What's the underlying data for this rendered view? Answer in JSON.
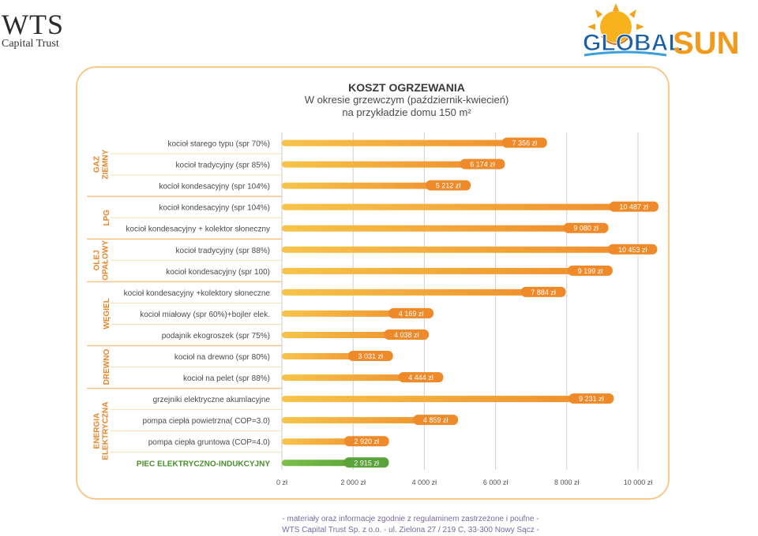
{
  "header": {
    "brand_name": "WTS",
    "brand_sub": "Capital Trust",
    "logo_text_1": "GLOBAL",
    "logo_text_2": "SUN"
  },
  "colors": {
    "bar_orange_start": "#f7c44a",
    "bar_orange_end": "#ef8a2a",
    "bar_green": "#5aa23a",
    "label_green": "#4a8f2c",
    "frame": "#f5c98a",
    "group_label": "#e8862c",
    "row_divider": "#f3c58a"
  },
  "chart_data": {
    "type": "bar",
    "orientation": "horizontal",
    "title": "KOSZT OGRZEWANIA",
    "subtitle_1": "W okresie grzewczym (październik-kwiecień)",
    "subtitle_2": "na przykładzie domu 150 m²",
    "xlim": [
      0,
      10000
    ],
    "ticks": [
      0,
      2000,
      4000,
      6000,
      8000,
      10000
    ],
    "tick_labels": [
      "0 zł",
      "2 000 zł",
      "4 000 zł",
      "6 000 zł",
      "8 000 zł",
      "10 000 zł"
    ],
    "grid": true,
    "groups": [
      {
        "name": "GAZ ZIEMNY",
        "rows": [
          {
            "label": "kocioł starego typu (spr 70%)",
            "value": 7356,
            "value_label": "7 356 zł"
          },
          {
            "label": "kocioł tradycyjny (spr 85%)",
            "value": 6174,
            "value_label": "6 174 zł"
          },
          {
            "label": "kocioł kondesacyjny (spr 104%)",
            "value": 5212,
            "value_label": "5 212 zł"
          }
        ]
      },
      {
        "name": "LPG",
        "rows": [
          {
            "label": "kocioł kondesacyjny (spr 104%)",
            "value": 10487,
            "value_label": "10 487 zł"
          },
          {
            "label": "kocioł kondesacyjny + kolektor słoneczny",
            "value": 9080,
            "value_label": "9 080 zł"
          }
        ]
      },
      {
        "name": "OLEJ OPAŁOWY",
        "rows": [
          {
            "label": "kocioł tradycyjny (spr 88%)",
            "value": 10453,
            "value_label": "10 453 zł"
          },
          {
            "label": "kocioł kondesacyjny (spr 100)",
            "value": 9199,
            "value_label": "9 199 zł"
          }
        ]
      },
      {
        "name": "WĘGIEL",
        "rows": [
          {
            "label": "kocioł kondesacyjny +kolektory słoneczne",
            "value": 7884,
            "value_label": "7 884 zł"
          },
          {
            "label": "kocioł miałowy (spr 60%)+bojler elek.",
            "value": 4169,
            "value_label": "4 169 zł"
          },
          {
            "label": "podajnik ekogroszek (spr 75%)",
            "value": 4038,
            "value_label": "4 038 zł"
          }
        ]
      },
      {
        "name": "DREWNO",
        "rows": [
          {
            "label": "kocioł na drewno (spr 80%)",
            "value": 3031,
            "value_label": "3 031 zł"
          },
          {
            "label": "kocioł na pelet (spr 88%)",
            "value": 4444,
            "value_label": "4 444 zł"
          }
        ]
      },
      {
        "name": "ENERGIA ELEKTRYCZNA",
        "rows": [
          {
            "label": "grzejniki elektryczne akumlacyjne",
            "value": 9231,
            "value_label": "9 231 zł"
          },
          {
            "label": "pompa ciepła powietrzna( COP=3.0)",
            "value": 4859,
            "value_label": "4 859 zł"
          },
          {
            "label": "pompa ciepła gruntowa (COP=4.0)",
            "value": 2920,
            "value_label": "2 920 zł"
          },
          {
            "label": "PIEC ELEKTRYCZNO-INDUKCYJNY",
            "value": 2915,
            "value_label": "2 915 zł",
            "highlight": true
          }
        ]
      }
    ]
  },
  "footer": {
    "line1": "-  materiały oraz informacje zgodnie z regulaminem zastrzeżone i poufne -",
    "line2": "WTS Capital Trust Sp. z o.o.   -   ul. Zielona 27 / 219 C, 33-300 Nowy Sącz   -"
  }
}
